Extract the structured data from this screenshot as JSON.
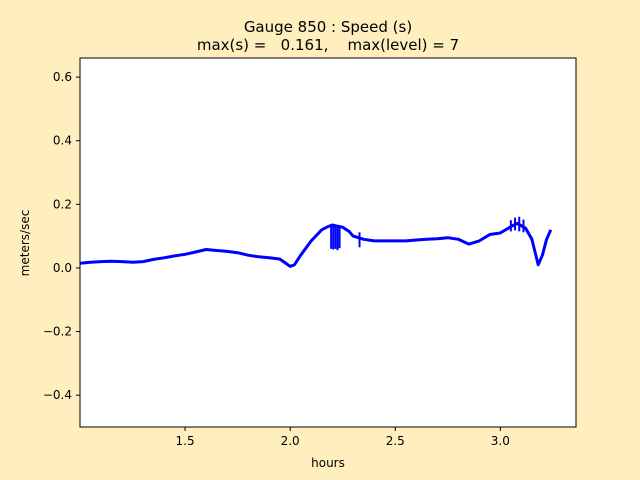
{
  "chart_data": {
    "type": "line",
    "title": "Gauge 850 : Speed (s)",
    "subtitle": "max(s) =   0.161,    max(level) = 7",
    "xlabel": "hours",
    "ylabel": "meters/sec",
    "xlim": [
      1.0,
      3.36
    ],
    "ylim": [
      -0.5,
      0.66
    ],
    "xticks": [
      1.5,
      2.0,
      2.5,
      3.0
    ],
    "xtick_labels": [
      "1.5",
      "2.0",
      "2.5",
      "3.0"
    ],
    "yticks": [
      -0.4,
      -0.2,
      0.0,
      0.2,
      0.4,
      0.6
    ],
    "ytick_labels": [
      "−0.4",
      "−0.2",
      "0.0",
      "0.2",
      "0.4",
      "0.6"
    ],
    "grid": false,
    "colors": {
      "line": "#0000ff",
      "background": "#ffefbf",
      "plot_area": "#ffffff"
    },
    "series": [
      {
        "values_x": [
          1.0,
          1.05,
          1.1,
          1.15,
          1.2,
          1.25,
          1.3,
          1.35,
          1.4,
          1.45,
          1.5,
          1.55,
          1.6,
          1.65,
          1.7,
          1.75,
          1.8,
          1.85,
          1.9,
          1.95,
          2.0,
          2.02,
          2.05,
          2.1,
          2.15,
          2.18,
          2.2,
          2.22,
          2.25,
          2.28,
          2.3,
          2.35,
          2.4,
          2.45,
          2.5,
          2.55,
          2.6,
          2.65,
          2.7,
          2.75,
          2.8,
          2.85,
          2.9,
          2.95,
          3.0,
          3.05,
          3.08,
          3.12,
          3.15,
          3.18,
          3.2,
          3.22,
          3.24
        ],
        "values_y": [
          0.015,
          0.018,
          0.02,
          0.021,
          0.02,
          0.018,
          0.02,
          0.027,
          0.032,
          0.038,
          0.043,
          0.05,
          0.058,
          0.055,
          0.052,
          0.048,
          0.04,
          0.035,
          0.032,
          0.028,
          0.005,
          0.01,
          0.04,
          0.085,
          0.12,
          0.13,
          0.135,
          0.132,
          0.128,
          0.115,
          0.1,
          0.09,
          0.085,
          0.085,
          0.085,
          0.085,
          0.088,
          0.09,
          0.092,
          0.095,
          0.09,
          0.075,
          0.085,
          0.105,
          0.11,
          0.13,
          0.14,
          0.125,
          0.09,
          0.01,
          0.04,
          0.09,
          0.12
        ]
      }
    ],
    "spikes": [
      {
        "x": 2.195,
        "low": 0.06,
        "high": 0.13
      },
      {
        "x": 2.205,
        "low": 0.058,
        "high": 0.135
      },
      {
        "x": 2.215,
        "low": 0.06,
        "high": 0.135
      },
      {
        "x": 2.225,
        "low": 0.056,
        "high": 0.133
      },
      {
        "x": 2.235,
        "low": 0.062,
        "high": 0.132
      },
      {
        "x": 2.33,
        "low": 0.065,
        "high": 0.112
      },
      {
        "x": 3.05,
        "low": 0.115,
        "high": 0.15
      },
      {
        "x": 3.07,
        "low": 0.118,
        "high": 0.158
      },
      {
        "x": 3.09,
        "low": 0.115,
        "high": 0.161
      },
      {
        "x": 3.11,
        "low": 0.112,
        "high": 0.152
      }
    ]
  }
}
